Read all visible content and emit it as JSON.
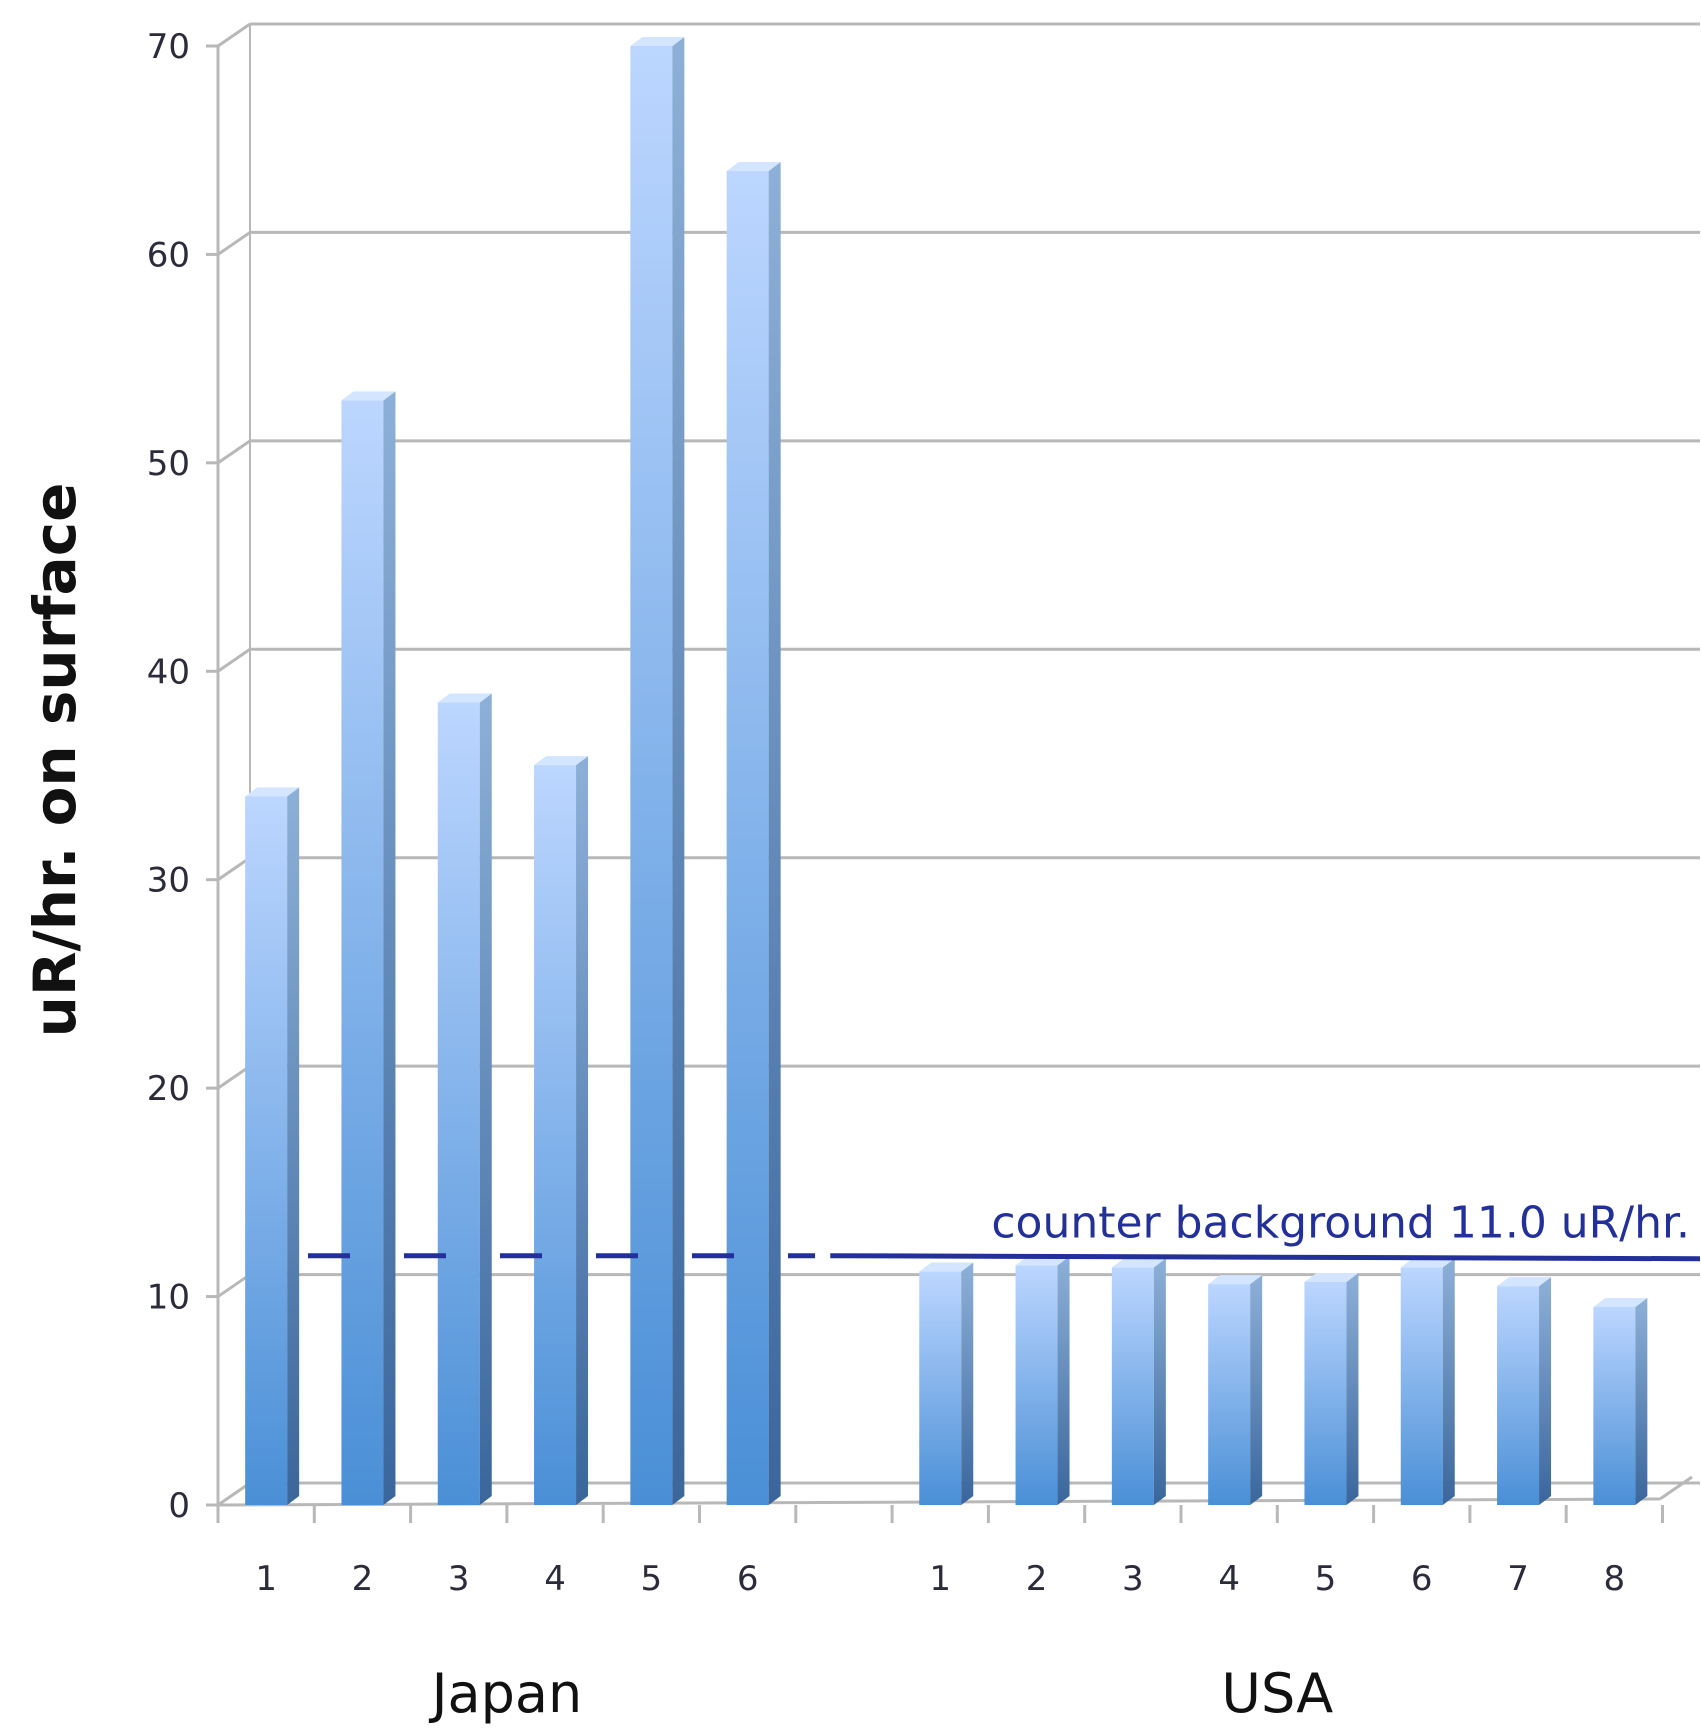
{
  "chart_data": {
    "type": "bar",
    "ylabel": "uR/hr. on surface",
    "ylim": [
      0,
      70
    ],
    "yticks": [
      0,
      10,
      20,
      30,
      40,
      50,
      60,
      70
    ],
    "grid": true,
    "style": "3d-column",
    "groups": [
      {
        "name": "Japan",
        "categories": [
          "1",
          "2",
          "3",
          "4",
          "5",
          "6"
        ],
        "values": [
          34,
          53,
          38.5,
          35.5,
          70,
          64
        ]
      },
      {
        "name": "USA",
        "categories": [
          "1",
          "2",
          "3",
          "4",
          "5",
          "6",
          "7",
          "8"
        ],
        "values": [
          11.2,
          11.5,
          11.4,
          10.6,
          10.7,
          11.4,
          10.5,
          9.5
        ]
      }
    ],
    "reference_line": {
      "value": 11.0,
      "label": "counter background 11.0 uR/hr.",
      "style": "dashed-then-solid"
    },
    "colors": {
      "bar_light": "#bcd6ff",
      "bar_dark": "#4a8fd6",
      "bar_side": "#3f6fa8",
      "reference_line": "#23309a",
      "grid": "#b8b8b8"
    }
  }
}
